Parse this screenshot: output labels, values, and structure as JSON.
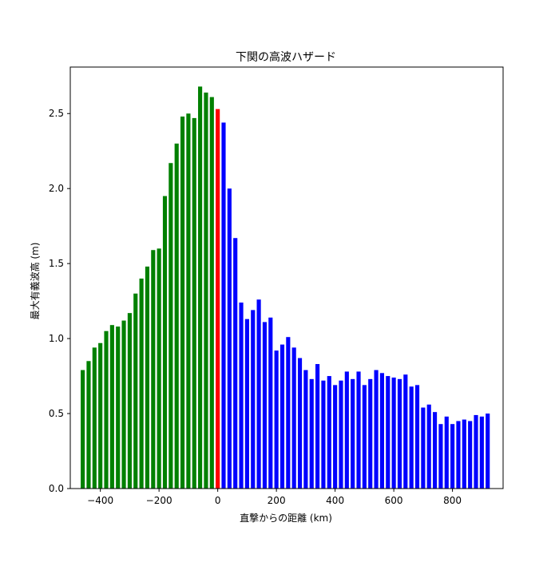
{
  "chart_data": {
    "type": "bar",
    "title": "下関の高波ハザード",
    "xlabel": "直撃からの距離 (km)",
    "ylabel": "最大有義波高 (m)",
    "xlim": [
      -502.5,
      972.5
    ],
    "ylim": [
      0,
      2.81
    ],
    "xticks": [
      -400,
      -200,
      0,
      200,
      400,
      600,
      800
    ],
    "xtick_labels": [
      "−400",
      "−200",
      "0",
      "200",
      "400",
      "600",
      "800"
    ],
    "yticks": [
      0.0,
      0.5,
      1.0,
      1.5,
      2.0,
      2.5
    ],
    "ytick_labels": [
      "0.0",
      "0.5",
      "1.0",
      "1.5",
      "2.0",
      "2.5"
    ],
    "bar_width": 14,
    "colors": {
      "before": "#008000",
      "landfall": "#ff0000",
      "after": "#0000ff",
      "frame": "#000000"
    },
    "x": [
      -460,
      -440,
      -420,
      -400,
      -380,
      -360,
      -340,
      -320,
      -300,
      -280,
      -260,
      -240,
      -220,
      -200,
      -180,
      -160,
      -140,
      -120,
      -100,
      -80,
      -60,
      -40,
      -20,
      0,
      20,
      40,
      60,
      80,
      100,
      120,
      140,
      160,
      180,
      200,
      220,
      240,
      260,
      280,
      300,
      320,
      340,
      360,
      380,
      400,
      420,
      440,
      460,
      480,
      500,
      520,
      540,
      560,
      580,
      600,
      620,
      640,
      660,
      680,
      700,
      720,
      740,
      760,
      780,
      800,
      820,
      840,
      860,
      880,
      900,
      920
    ],
    "values": [
      0.79,
      0.85,
      0.94,
      0.97,
      1.05,
      1.09,
      1.08,
      1.12,
      1.17,
      1.3,
      1.4,
      1.48,
      1.59,
      1.6,
      1.95,
      2.17,
      2.3,
      2.48,
      2.5,
      2.47,
      2.68,
      2.64,
      2.61,
      2.53,
      2.44,
      2.0,
      1.67,
      1.24,
      1.13,
      1.19,
      1.26,
      1.11,
      1.14,
      0.92,
      0.96,
      1.01,
      0.94,
      0.87,
      0.79,
      0.73,
      0.83,
      0.72,
      0.75,
      0.69,
      0.72,
      0.78,
      0.73,
      0.78,
      0.69,
      0.73,
      0.79,
      0.77,
      0.75,
      0.74,
      0.73,
      0.76,
      0.68,
      0.69,
      0.54,
      0.56,
      0.51,
      0.43,
      0.48,
      0.43,
      0.45,
      0.46,
      0.45,
      0.49,
      0.48,
      0.5
    ]
  }
}
